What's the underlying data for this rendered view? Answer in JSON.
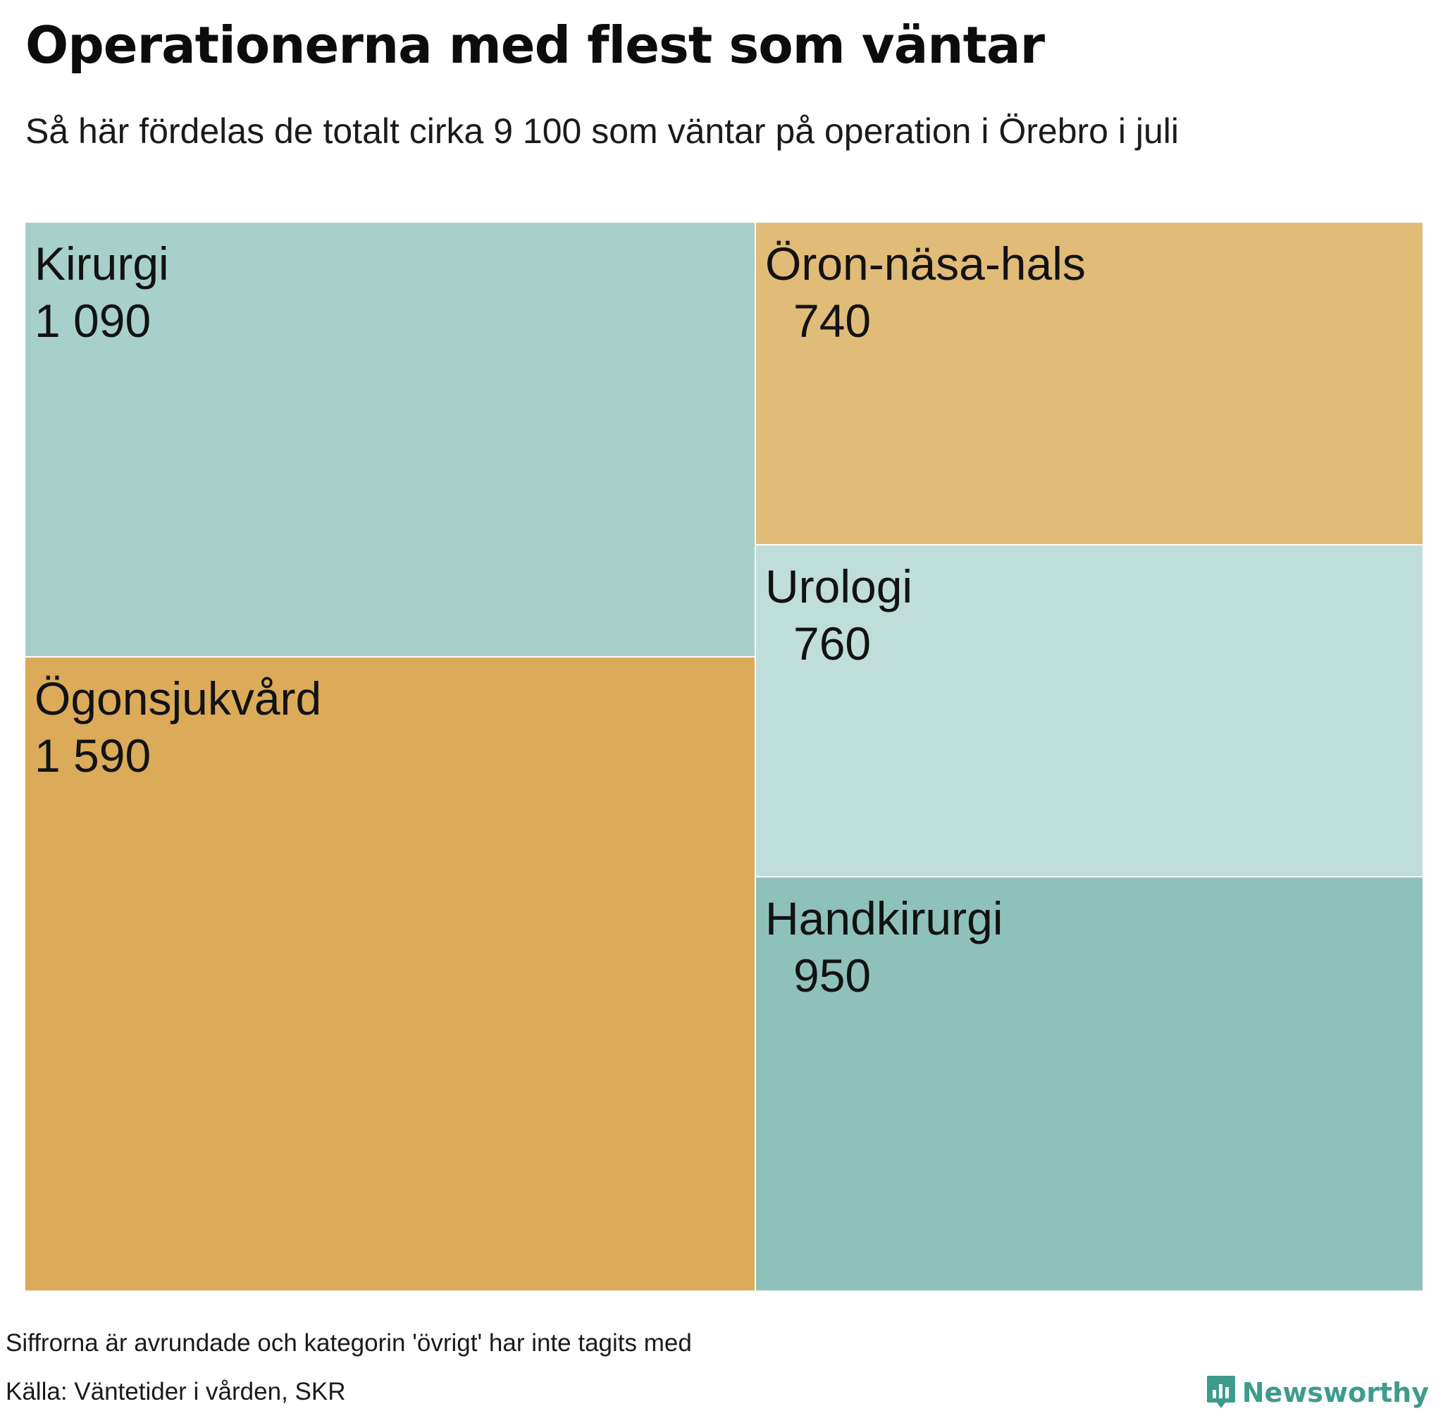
{
  "title": "Operationerna med flest som väntar",
  "subtitle": "Så här fördelas de totalt cirka 9 100 som väntar på operation i Örebro i juli",
  "chart_data": {
    "type": "treemap",
    "title": "Operationerna med flest som väntar",
    "subtitle": "Så här fördelas de totalt cirka 9 100 som väntar på operation i Örebro i juli",
    "items": [
      {
        "name": "Ögonsjukvård",
        "value": 1590,
        "label": "1 590",
        "color": "#dbab5a"
      },
      {
        "name": "Kirurgi",
        "value": 1090,
        "label": "1 090",
        "color": "#a7d0ca"
      },
      {
        "name": "Handkirurgi",
        "value": 950,
        "label": "950",
        "color": "#8ec1b9"
      },
      {
        "name": "Urologi",
        "value": 760,
        "label": "760",
        "color": "#bfded9"
      },
      {
        "name": "Öron-näsa-hals",
        "value": 740,
        "label": "740",
        "color": "#e1bb78"
      }
    ]
  },
  "footer": {
    "note": "Siffrorna är avrundade och kategorin 'övrigt' har inte tagits med",
    "source": "Källa: Väntetider i vården, SKR",
    "brand": "Newsworthy",
    "brand_color": "#3e9b8d"
  }
}
